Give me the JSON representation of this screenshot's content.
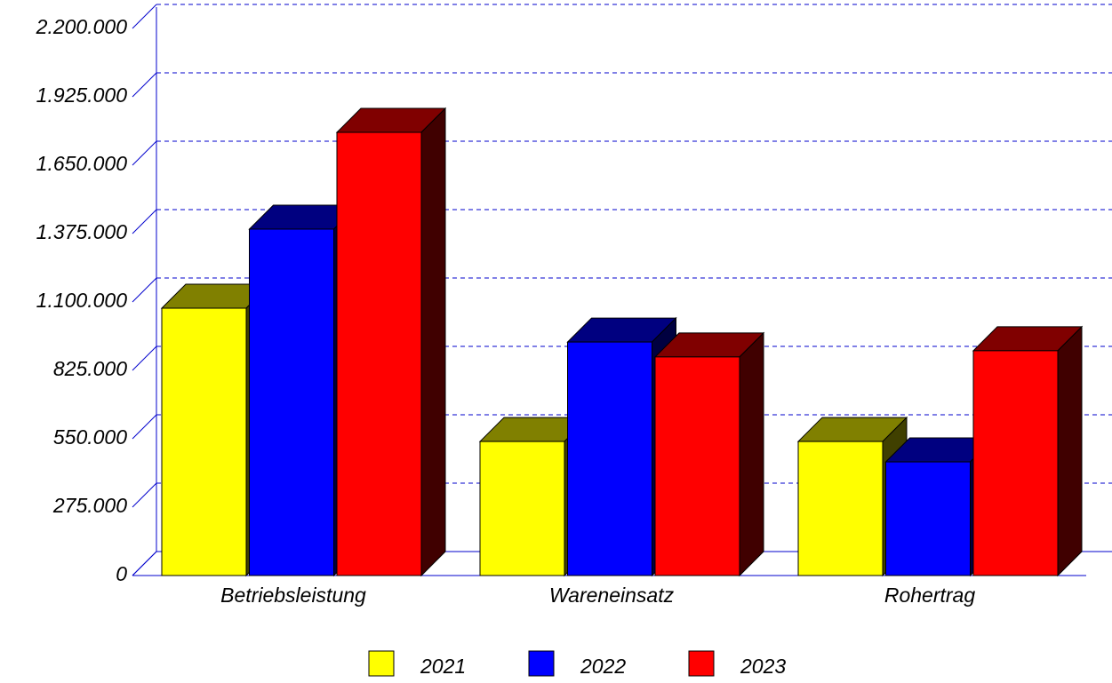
{
  "chart_data": {
    "type": "bar3d",
    "categories": [
      "Betriebsleistung",
      "Wareneinsatz",
      "Rohertrag"
    ],
    "series": [
      {
        "name": "2021",
        "color": "#ffff00",
        "values": [
          1075000,
          539000,
          539000
        ]
      },
      {
        "name": "2022",
        "color": "#0000ff",
        "values": [
          1393000,
          939000,
          457000
        ]
      },
      {
        "name": "2023",
        "color": "#ff0000",
        "values": [
          1782000,
          879000,
          904000
        ]
      }
    ],
    "ylim": [
      0,
      2200000
    ],
    "yticks": [
      0,
      {
        "value": 275000,
        "label": "275.000"
      },
      {
        "value": 550000,
        "label": "550.000"
      },
      {
        "value": 825000,
        "label": "825.000"
      },
      {
        "value": 1100000,
        "label": "1.100.000"
      },
      {
        "value": 1375000,
        "label": "1.375.000"
      },
      {
        "value": 1650000,
        "label": "1.650.000"
      },
      {
        "value": 1925000,
        "label": "1.925.000"
      },
      {
        "value": 2200000,
        "label": "2.200.000"
      }
    ],
    "grid": true,
    "legend": "bottom"
  }
}
